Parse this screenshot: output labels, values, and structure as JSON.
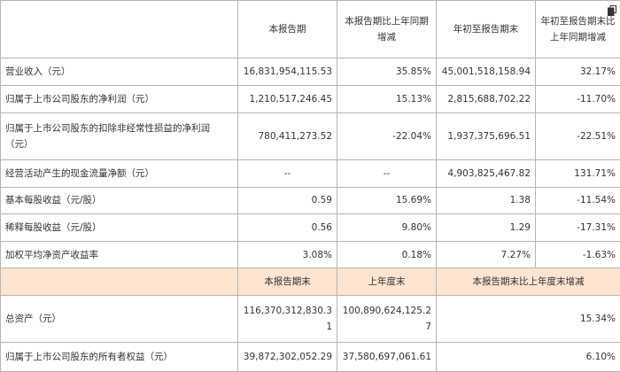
{
  "header": {
    "blank": "",
    "col1": "本报告期",
    "col2": "本报告期比上年同期增减",
    "col3": "年初至报告期末",
    "col4": "年初至报告期末比上年同期增减"
  },
  "rows": [
    {
      "label": "营业收入（元）",
      "v1": "16,831,954,115.53",
      "v2": "35.85%",
      "v3": "45,001,518,158.94",
      "v4": "32.17%"
    },
    {
      "label": "归属于上市公司股东的净利润（元）",
      "v1": "1,210,517,246.45",
      "v2": "15.13%",
      "v3": "2,815,688,702.22",
      "v4": "-11.70%"
    },
    {
      "label": "归属于上市公司股东的扣除非经常性损益的净利润（元）",
      "v1": "780,411,273.52",
      "v2": "-22.04%",
      "v3": "1,937,375,696.51",
      "v4": "-22.51%"
    },
    {
      "label": "经营活动产生的现金流量净额（元）",
      "v1": "--",
      "v2": "--",
      "v3": "4,903,825,467.82",
      "v4": "131.71%"
    },
    {
      "label": "基本每股收益（元/股）",
      "v1": "0.59",
      "v2": "15.69%",
      "v3": "1.38",
      "v4": "-11.54%"
    },
    {
      "label": "稀释每股收益（元/股）",
      "v1": "0.56",
      "v2": "9.80%",
      "v3": "1.29",
      "v4": "-17.31%"
    },
    {
      "label": "加权平均净资产收益率",
      "v1": "3.08%",
      "v2": "0.18%",
      "v3": "7.27%",
      "v4": "-1.63%"
    }
  ],
  "subheader": {
    "blank": "",
    "col1": "本报告期末",
    "col2": "上年度末",
    "col3": "本报告期末比上年度末增减"
  },
  "rows2": [
    {
      "label": "总资产（元）",
      "v1": "116,370,312,830.31",
      "v2": "100,890,624,125.27",
      "v3": "15.34%"
    },
    {
      "label": "归属于上市公司股东的所有者权益（元）",
      "v1": "39,872,302,052.29",
      "v2": "37,580,697,061.61",
      "v3": "6.10%"
    }
  ],
  "icons": {
    "corner": "copy-icon"
  }
}
